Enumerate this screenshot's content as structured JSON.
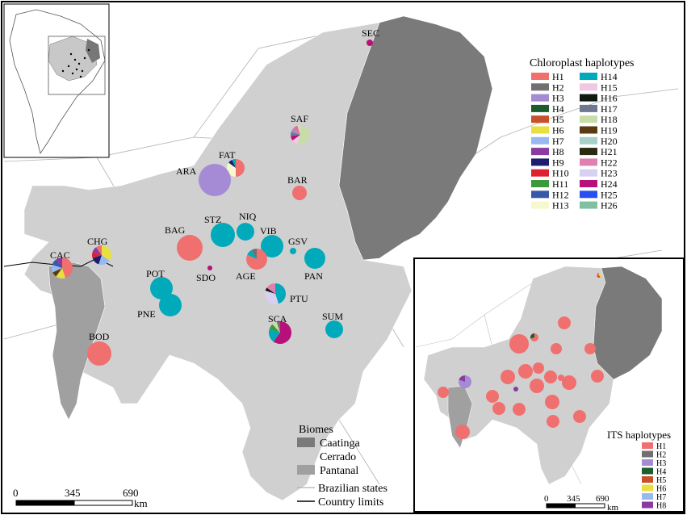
{
  "main_map": {
    "sites": [
      {
        "code": "SEC",
        "slices": [
          {
            "h": "H24",
            "v": 1
          }
        ]
      },
      {
        "code": "SAF",
        "slices": [
          {
            "h": "H18",
            "v": 0.55
          },
          {
            "h": "H15",
            "v": 0.1
          },
          {
            "h": "H24",
            "v": 0.08
          },
          {
            "h": "H17",
            "v": 0.07
          },
          {
            "h": "H3",
            "v": 0.08
          },
          {
            "h": "H1",
            "v": 0.07
          },
          {
            "h": "H23",
            "v": 0.05
          }
        ]
      },
      {
        "code": "FAT",
        "slices": [
          {
            "h": "H1",
            "v": 0.5
          },
          {
            "h": "H13",
            "v": 0.35
          },
          {
            "h": "H9",
            "v": 0.08
          },
          {
            "h": "H14",
            "v": 0.07
          }
        ]
      },
      {
        "code": "ARA",
        "slices": [
          {
            "h": "H3",
            "v": 1
          }
        ]
      },
      {
        "code": "BAR",
        "slices": [
          {
            "h": "H1",
            "v": 1
          }
        ]
      },
      {
        "code": "NIQ",
        "slices": [
          {
            "h": "H14",
            "v": 1
          }
        ]
      },
      {
        "code": "STZ",
        "slices": [
          {
            "h": "H14",
            "v": 1
          }
        ]
      },
      {
        "code": "BAG",
        "slices": [
          {
            "h": "H1",
            "v": 1
          }
        ]
      },
      {
        "code": "VIB",
        "slices": [
          {
            "h": "H14",
            "v": 1
          }
        ]
      },
      {
        "code": "GSV",
        "slices": [
          {
            "h": "H14",
            "v": 1
          }
        ]
      },
      {
        "code": "CHG",
        "slices": [
          {
            "h": "H6",
            "v": 0.35
          },
          {
            "h": "H7",
            "v": 0.2
          },
          {
            "h": "H9",
            "v": 0.15
          },
          {
            "h": "H10",
            "v": 0.1
          },
          {
            "h": "H8",
            "v": 0.1
          },
          {
            "h": "H1",
            "v": 0.1
          }
        ]
      },
      {
        "code": "CAC",
        "slices": [
          {
            "h": "H1",
            "v": 0.45
          },
          {
            "h": "H6",
            "v": 0.15
          },
          {
            "h": "H19",
            "v": 0.08
          },
          {
            "h": "H7",
            "v": 0.12
          },
          {
            "h": "H12",
            "v": 0.1
          },
          {
            "h": "H8",
            "v": 0.1
          }
        ]
      },
      {
        "code": "AGE",
        "slices": [
          {
            "h": "H1",
            "v": 0.82
          },
          {
            "h": "H14",
            "v": 0.1
          },
          {
            "h": "H2",
            "v": 0.08
          }
        ]
      },
      {
        "code": "PAN",
        "slices": [
          {
            "h": "H14",
            "v": 1
          }
        ]
      },
      {
        "code": "SDO",
        "slices": [
          {
            "h": "H24",
            "v": 1
          }
        ]
      },
      {
        "code": "POT",
        "slices": [
          {
            "h": "H14",
            "v": 1
          }
        ]
      },
      {
        "code": "PTU",
        "slices": [
          {
            "h": "H14",
            "v": 0.45
          },
          {
            "h": "H23",
            "v": 0.35
          },
          {
            "h": "H16",
            "v": 0.05
          },
          {
            "h": "H22",
            "v": 0.15
          }
        ]
      },
      {
        "code": "PNE",
        "slices": [
          {
            "h": "H14",
            "v": 1
          }
        ]
      },
      {
        "code": "SCA",
        "slices": [
          {
            "h": "H24",
            "v": 0.6
          },
          {
            "h": "H14",
            "v": 0.2
          },
          {
            "h": "H11",
            "v": 0.08
          },
          {
            "h": "H18",
            "v": 0.07
          },
          {
            "h": "H2",
            "v": 0.05
          }
        ]
      },
      {
        "code": "SUM",
        "slices": [
          {
            "h": "H14",
            "v": 1
          }
        ]
      },
      {
        "code": "BOD",
        "slices": [
          {
            "h": "H1",
            "v": 1
          }
        ]
      }
    ],
    "scale": {
      "labels": [
        "0",
        "345",
        "690"
      ],
      "unit": "km"
    }
  },
  "chloroplast_legend": {
    "title": "Chloroplast haplotypes",
    "items": [
      {
        "name": "H1",
        "color": "#f07070"
      },
      {
        "name": "H2",
        "color": "#707070"
      },
      {
        "name": "H3",
        "color": "#a58ad6"
      },
      {
        "name": "H4",
        "color": "#1d5c2c"
      },
      {
        "name": "H5",
        "color": "#c8502a"
      },
      {
        "name": "H6",
        "color": "#e8e040"
      },
      {
        "name": "H7",
        "color": "#9ab8f0"
      },
      {
        "name": "H8",
        "color": "#8a3aa0"
      },
      {
        "name": "H9",
        "color": "#1d1d70"
      },
      {
        "name": "H10",
        "color": "#e02030"
      },
      {
        "name": "H11",
        "color": "#3c9a3c"
      },
      {
        "name": "H12",
        "color": "#3858a8"
      },
      {
        "name": "H13",
        "color": "#f8f8d0"
      },
      {
        "name": "H14",
        "color": "#00aabb"
      },
      {
        "name": "H15",
        "color": "#f0c8e0"
      },
      {
        "name": "H16",
        "color": "#101a10"
      },
      {
        "name": "H17",
        "color": "#707890"
      },
      {
        "name": "H18",
        "color": "#c8dca8"
      },
      {
        "name": "H19",
        "color": "#5a3a10"
      },
      {
        "name": "H20",
        "color": "#a8d0c8"
      },
      {
        "name": "H21",
        "color": "#2a2a10"
      },
      {
        "name": "H22",
        "color": "#e080b0"
      },
      {
        "name": "H23",
        "color": "#d8d0f0"
      },
      {
        "name": "H24",
        "color": "#b8107a"
      },
      {
        "name": "H25",
        "color": "#2850f0"
      },
      {
        "name": "H26",
        "color": "#80c0a0"
      }
    ]
  },
  "biomes_legend": {
    "title": "Biomes",
    "items": [
      {
        "name": "Caatinga",
        "color": "#7a7a7a"
      },
      {
        "name": "Cerrado",
        "color": "#d0d0d0"
      },
      {
        "name": "Pantanal",
        "color": "#a0a0a0"
      }
    ],
    "lines": [
      {
        "name": "Brazilian states",
        "color": "#b0b0b0"
      },
      {
        "name": "Country limits",
        "color": "#000000"
      }
    ]
  },
  "its_inset": {
    "legend_title": "ITS haplotypes",
    "items": [
      {
        "name": "H1",
        "color": "#f07070"
      },
      {
        "name": "H2",
        "color": "#707070"
      },
      {
        "name": "H3",
        "color": "#a58ad6"
      },
      {
        "name": "H4",
        "color": "#1d5c2c"
      },
      {
        "name": "H5",
        "color": "#c8502a"
      },
      {
        "name": "H6",
        "color": "#e8e040"
      },
      {
        "name": "H7",
        "color": "#9ab8f0"
      },
      {
        "name": "H8",
        "color": "#8a3aa0"
      }
    ],
    "scale": {
      "labels": [
        "0",
        "345",
        "690"
      ],
      "unit": "km"
    }
  }
}
